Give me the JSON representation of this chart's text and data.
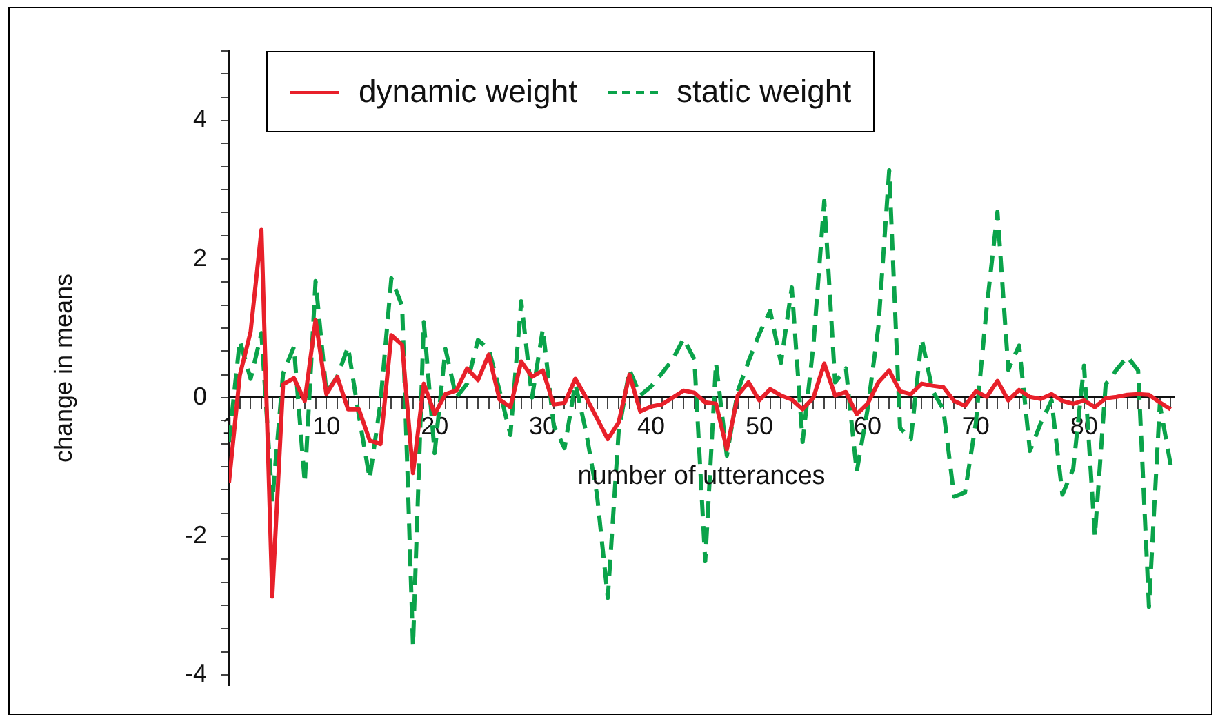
{
  "chart_data": {
    "type": "line",
    "xlabel": "number of utterances",
    "ylabel": "change in means",
    "x": [
      1,
      2,
      3,
      4,
      5,
      6,
      7,
      8,
      9,
      10,
      11,
      12,
      13,
      14,
      15,
      16,
      17,
      18,
      19,
      20,
      21,
      22,
      23,
      24,
      25,
      26,
      27,
      28,
      29,
      30,
      31,
      32,
      33,
      34,
      35,
      36,
      37,
      38,
      39,
      40,
      41,
      42,
      43,
      44,
      45,
      46,
      47,
      48,
      49,
      50,
      51,
      52,
      53,
      54,
      55,
      56,
      57,
      58,
      59,
      60,
      61,
      62,
      63,
      64,
      65,
      66,
      67,
      68,
      69,
      70,
      71,
      72,
      73,
      74,
      75,
      76,
      77,
      78,
      79,
      80,
      81,
      82,
      83,
      84,
      85,
      86,
      87,
      88
    ],
    "series": [
      {
        "name": "dynamic weight",
        "color": "#e8202a",
        "line_style": "solid",
        "values": [
          -1.23,
          0.32,
          0.95,
          2.42,
          -2.87,
          0.19,
          0.28,
          -0.05,
          1.12,
          0.05,
          0.3,
          -0.17,
          -0.17,
          -0.62,
          -0.67,
          0.9,
          0.76,
          -1.09,
          0.2,
          -0.24,
          0.05,
          0.1,
          0.42,
          0.25,
          0.62,
          -0.03,
          -0.14,
          0.52,
          0.3,
          0.39,
          -0.1,
          -0.08,
          0.27,
          0,
          -0.3,
          -0.6,
          -0.36,
          0.33,
          -0.2,
          -0.13,
          -0.1,
          0,
          0.1,
          0.07,
          -0.07,
          -0.09,
          -0.75,
          0.03,
          0.22,
          -0.04,
          0.12,
          0.03,
          -0.03,
          -0.17,
          0,
          0.49,
          0.03,
          0.08,
          -0.24,
          -0.09,
          0.22,
          0.39,
          0.09,
          0.05,
          0.2,
          0.17,
          0.15,
          -0.05,
          -0.12,
          0.09,
          0.01,
          0.24,
          -0.04,
          0.11,
          0.01,
          -0.02,
          0.05,
          -0.05,
          -0.09,
          -0.04,
          -0.14,
          -0.01,
          0.01,
          0.04,
          0.05,
          0.04,
          -0.07,
          -0.17
        ]
      },
      {
        "name": "static weight",
        "color": "#0aa34a",
        "line_style": "dashed",
        "values": [
          -0.64,
          0.82,
          0.27,
          0.93,
          -1.5,
          0.35,
          0.73,
          -1.23,
          1.68,
          0.07,
          0.3,
          0.73,
          -0.26,
          -1.17,
          -0.07,
          1.72,
          1.32,
          -3.58,
          1.09,
          -0.8,
          0.7,
          0,
          0.2,
          0.83,
          0.7,
          0.1,
          -0.54,
          1.39,
          0,
          0.99,
          -0.4,
          -0.73,
          0.2,
          -0.5,
          -1.4,
          -2.89,
          -0.5,
          0.4,
          0.03,
          0.16,
          0.35,
          0.55,
          0.85,
          0.55,
          -2.36,
          0.5,
          -0.84,
          0.09,
          0.52,
          0.92,
          1.25,
          0.5,
          1.59,
          -0.64,
          0.76,
          2.84,
          0.22,
          0.42,
          -1.07,
          -0.17,
          1.02,
          3.28,
          -0.44,
          -0.6,
          0.85,
          0.1,
          -0.17,
          -1.43,
          -1.37,
          -0.37,
          1.29,
          2.68,
          0.4,
          0.75,
          -0.77,
          -0.37,
          -0.04,
          -1.4,
          -1.03,
          0.46,
          -2.0,
          0.19,
          0.4,
          0.59,
          0.39,
          -3.02,
          -0.1,
          -0.97
        ]
      }
    ],
    "xlim": [
      1,
      88.3
    ],
    "xticks": [
      1,
      {
        "value": 2,
        "label": null
      },
      {
        "value": 3,
        "label": null
      },
      {
        "value": 4,
        "label": null
      },
      {
        "value": 5,
        "label": null
      },
      {
        "value": 6,
        "label": null
      },
      {
        "value": 7,
        "label": null
      },
      {
        "value": 8,
        "label": null
      },
      {
        "value": 9,
        "label": null
      },
      10,
      {
        "value": 11,
        "label": null
      },
      {
        "value": 12,
        "label": null
      },
      {
        "value": 13,
        "label": null
      },
      {
        "value": 14,
        "label": null
      },
      {
        "value": 15,
        "label": null
      },
      {
        "value": 16,
        "label": null
      },
      {
        "value": 17,
        "label": null
      },
      {
        "value": 18,
        "label": null
      },
      {
        "value": 19,
        "label": null
      },
      20,
      {
        "value": 21,
        "label": null
      },
      {
        "value": 22,
        "label": null
      },
      {
        "value": 23,
        "label": null
      },
      {
        "value": 24,
        "label": null
      },
      {
        "value": 25,
        "label": null
      },
      {
        "value": 26,
        "label": null
      },
      {
        "value": 27,
        "label": null
      },
      {
        "value": 28,
        "label": null
      },
      {
        "value": 29,
        "label": null
      },
      30,
      {
        "value": 31,
        "label": null
      },
      {
        "value": 32,
        "label": null
      },
      {
        "value": 33,
        "label": null
      },
      {
        "value": 34,
        "label": null
      },
      {
        "value": 35,
        "label": null
      },
      {
        "value": 36,
        "label": null
      },
      {
        "value": 37,
        "label": null
      },
      {
        "value": 38,
        "label": null
      },
      {
        "value": 39,
        "label": null
      },
      40,
      {
        "value": 41,
        "label": null
      },
      {
        "value": 42,
        "label": null
      },
      {
        "value": 43,
        "label": null
      },
      {
        "value": 44,
        "label": null
      },
      {
        "value": 45,
        "label": null
      },
      {
        "value": 46,
        "label": null
      },
      {
        "value": 47,
        "label": null
      },
      {
        "value": 48,
        "label": null
      },
      {
        "value": 49,
        "label": null
      },
      50,
      {
        "value": 51,
        "label": null
      },
      {
        "value": 52,
        "label": null
      },
      {
        "value": 53,
        "label": null
      },
      {
        "value": 54,
        "label": null
      },
      {
        "value": 55,
        "label": null
      },
      {
        "value": 56,
        "label": null
      },
      {
        "value": 57,
        "label": null
      },
      {
        "value": 58,
        "label": null
      },
      {
        "value": 59,
        "label": null
      },
      60,
      {
        "value": 61,
        "label": null
      },
      {
        "value": 62,
        "label": null
      },
      {
        "value": 63,
        "label": null
      },
      {
        "value": 64,
        "label": null
      },
      {
        "value": 65,
        "label": null
      },
      {
        "value": 66,
        "label": null
      },
      {
        "value": 67,
        "label": null
      },
      {
        "value": 68,
        "label": null
      },
      {
        "value": 69,
        "label": null
      },
      70,
      {
        "value": 71,
        "label": null
      },
      {
        "value": 72,
        "label": null
      },
      {
        "value": 73,
        "label": null
      },
      {
        "value": 74,
        "label": null
      },
      {
        "value": 75,
        "label": null
      },
      {
        "value": 76,
        "label": null
      },
      {
        "value": 77,
        "label": null
      },
      {
        "value": 78,
        "label": null
      },
      {
        "value": 79,
        "label": null
      },
      80,
      {
        "value": 81,
        "label": null
      },
      {
        "value": 82,
        "label": null
      },
      {
        "value": 83,
        "label": null
      },
      {
        "value": 84,
        "label": null
      },
      {
        "value": 85,
        "label": null
      },
      {
        "value": 86,
        "label": null
      },
      {
        "value": 87,
        "label": null
      },
      {
        "value": 88,
        "label": null
      }
    ],
    "ylim": [
      -4.15,
      5
    ],
    "yticks": [
      -4,
      {
        "value": -3.67,
        "label": null
      },
      {
        "value": -3.33,
        "label": null
      },
      {
        "value": -3,
        "label": null
      },
      {
        "value": -2.67,
        "label": null
      },
      {
        "value": -2.33,
        "label": null
      },
      -2,
      {
        "value": -1.67,
        "label": null
      },
      {
        "value": -1.33,
        "label": null
      },
      {
        "value": -1,
        "label": null
      },
      {
        "value": -0.67,
        "label": null
      },
      {
        "value": -0.33,
        "label": null
      },
      0,
      {
        "value": 0.33,
        "label": null
      },
      {
        "value": 0.67,
        "label": null
      },
      {
        "value": 1,
        "label": null
      },
      {
        "value": 1.33,
        "label": null
      },
      {
        "value": 1.67,
        "label": null
      },
      2,
      {
        "value": 2.33,
        "label": null
      },
      {
        "value": 2.67,
        "label": null
      },
      {
        "value": 3,
        "label": null
      },
      {
        "value": 3.33,
        "label": null
      },
      {
        "value": 3.67,
        "label": null
      },
      4,
      {
        "value": 4.33,
        "label": null
      },
      {
        "value": 4.67,
        "label": null
      },
      {
        "value": 5,
        "label": null
      }
    ],
    "grid": false,
    "legend": "top",
    "marker": "none"
  }
}
